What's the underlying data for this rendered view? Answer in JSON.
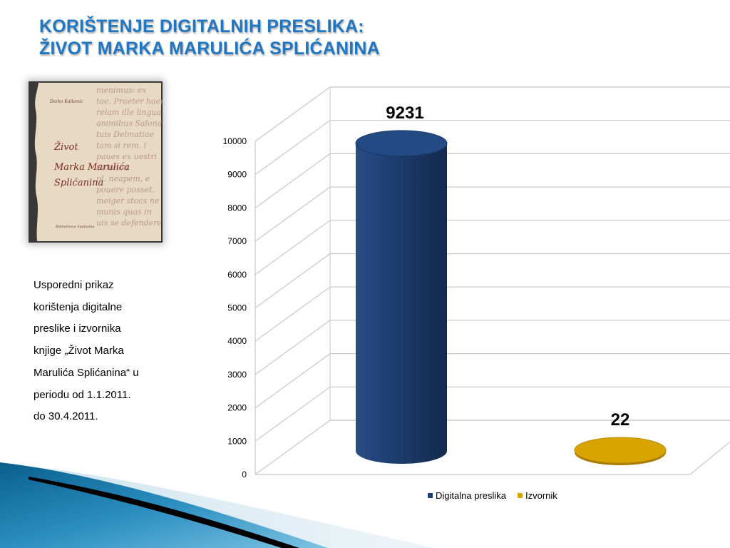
{
  "slide": {
    "title_line1": "KORIŠTENJE DIGITALNIH PRESLIKA:",
    "title_line2": "ŽIVOT MARKA MARULIĆA SPLIĆANINA",
    "title_color": "#1f77c4",
    "caption_lines": [
      "Usporedni prikaz",
      "korištenja digitalne",
      "preslike i izvornika",
      "knjige „Život Marka",
      "Marulića Splićanina“ u",
      "periodu od 1.1.2011.",
      "do 30.4.2011."
    ]
  },
  "book_cover": {
    "author": "Darko Kulkovic",
    "title_lines": [
      "Život",
      "Marka Marulića",
      "Splićanina"
    ],
    "publisher": "Bibliotheca Spalatina",
    "background_text": [
      "menimus: ex",
      "tae. Praeter haec",
      "relam ille lingua",
      "animibus Salona",
      "tuis Delmatiae",
      "tam si rem. i",
      "paues ex uestri",
      "Salonen",
      "pl. neapem, e",
      "pouere posset.",
      "meiger stocs ne",
      "munis quas in",
      "uis se defendere"
    ]
  },
  "chart_data": {
    "type": "bar",
    "style": "3d-cylinder",
    "ylim": [
      0,
      10000
    ],
    "yticks": [
      "0",
      "1000",
      "2000",
      "3000",
      "4000",
      "5000",
      "6000",
      "7000",
      "8000",
      "9000",
      "10000"
    ],
    "series": [
      {
        "name": "Digitalna preslika",
        "value": 9231,
        "label": "9231",
        "color": "#1f3f75"
      },
      {
        "name": "Izvornik",
        "value": 22,
        "label": "22",
        "color": "#d9a400"
      }
    ],
    "legend": "bottom",
    "grid": true
  }
}
